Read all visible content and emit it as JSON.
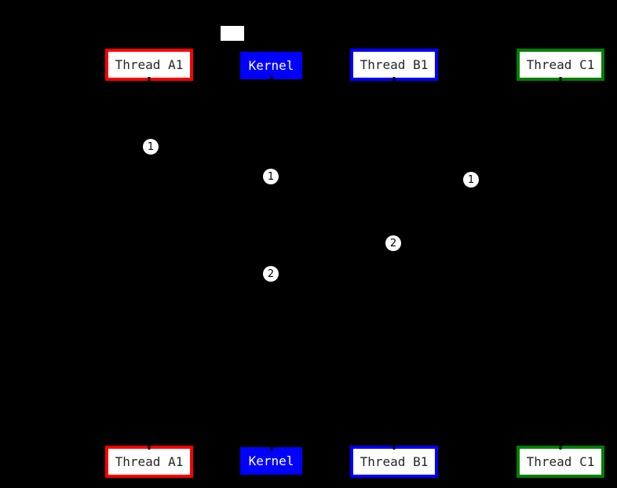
{
  "diagram": {
    "type": "sequence-diagram",
    "background_color": "#000000",
    "entities": [
      {
        "label": "Thread A1",
        "border_color": "#ff0000",
        "fill_color": "#ffffff",
        "text_color": "#262626"
      },
      {
        "label": "Kernel",
        "border_color": "#0000ff",
        "fill_color": "#0000ff",
        "text_color": "#ffffff"
      },
      {
        "label": "Thread B1",
        "border_color": "#0000ff",
        "fill_color": "#ffffff",
        "text_color": "#262626"
      },
      {
        "label": "Thread C1",
        "border_color": "#008000",
        "fill_color": "#ffffff",
        "text_color": "#262626"
      }
    ],
    "markers": [
      {
        "label": "1"
      },
      {
        "label": "1"
      },
      {
        "label": "1"
      },
      {
        "label": "2"
      },
      {
        "label": "2"
      }
    ],
    "note_box": {
      "fill_color": "#ffffff",
      "text": ""
    },
    "marker_fill_color": "#ffffff",
    "marker_text_color": "#000000"
  }
}
